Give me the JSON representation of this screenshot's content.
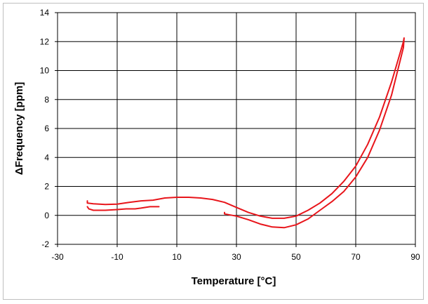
{
  "chart_data": {
    "type": "line",
    "title": "",
    "xlabel": "Temperature [°C]",
    "ylabel": "ΔFrequency [ppm]",
    "xlim": [
      -30,
      90
    ],
    "ylim": [
      -2,
      14
    ],
    "x_ticks": [
      -30,
      -10,
      10,
      30,
      50,
      70,
      90
    ],
    "x_tick_labels": [
      "-30",
      "-10",
      "10",
      "30",
      "50",
      "70",
      "90"
    ],
    "y_ticks": [
      -2,
      0,
      2,
      4,
      6,
      8,
      10,
      12,
      14
    ],
    "y_tick_labels": [
      "-2",
      "0",
      "2",
      "4",
      "6",
      "8",
      "10",
      "12",
      "14"
    ],
    "x_grid_step": 20,
    "grid": true,
    "legend": "none",
    "series": [
      {
        "color": "#e8151b",
        "x": [
          -20,
          -20,
          -18,
          -14,
          -10,
          -6,
          -2,
          2,
          6,
          10,
          14,
          18,
          22,
          26,
          30,
          34,
          38,
          42,
          46,
          50,
          54,
          58,
          62,
          66,
          70,
          74,
          78,
          82,
          86,
          86.2,
          86,
          82,
          78,
          74,
          70,
          66,
          62,
          58,
          54,
          50,
          46,
          42,
          38,
          34,
          30,
          26,
          26
        ],
        "y": [
          1.0,
          0.85,
          0.8,
          0.75,
          0.78,
          0.9,
          1.0,
          1.05,
          1.2,
          1.25,
          1.25,
          1.2,
          1.1,
          0.9,
          0.55,
          0.2,
          -0.05,
          -0.2,
          -0.2,
          -0.05,
          0.35,
          0.85,
          1.5,
          2.35,
          3.4,
          4.9,
          6.8,
          9.2,
          12.0,
          12.25,
          11.6,
          8.3,
          5.9,
          4.0,
          2.65,
          1.65,
          0.95,
          0.35,
          -0.25,
          -0.65,
          -0.85,
          -0.8,
          -0.6,
          -0.3,
          -0.05,
          0.1,
          0.2
        ]
      },
      {
        "color": "#e8151b",
        "x": [
          -20,
          -19.5,
          -18,
          -14,
          -10,
          -7,
          -4,
          -2,
          1,
          4
        ],
        "y": [
          0.6,
          0.45,
          0.35,
          0.35,
          0.4,
          0.45,
          0.45,
          0.5,
          0.6,
          0.6
        ]
      }
    ]
  }
}
